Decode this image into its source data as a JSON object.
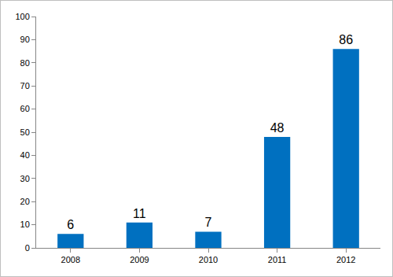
{
  "chart_data": {
    "type": "bar",
    "categories": [
      "2008",
      "2009",
      "2010",
      "2011",
      "2012"
    ],
    "values": [
      6,
      11,
      7,
      48,
      86
    ],
    "color": "#0070c0",
    "ylim": [
      0,
      100
    ],
    "yticks": [
      0,
      10,
      20,
      30,
      40,
      50,
      60,
      70,
      80,
      90,
      100
    ],
    "grid": false,
    "data_labels": true
  }
}
